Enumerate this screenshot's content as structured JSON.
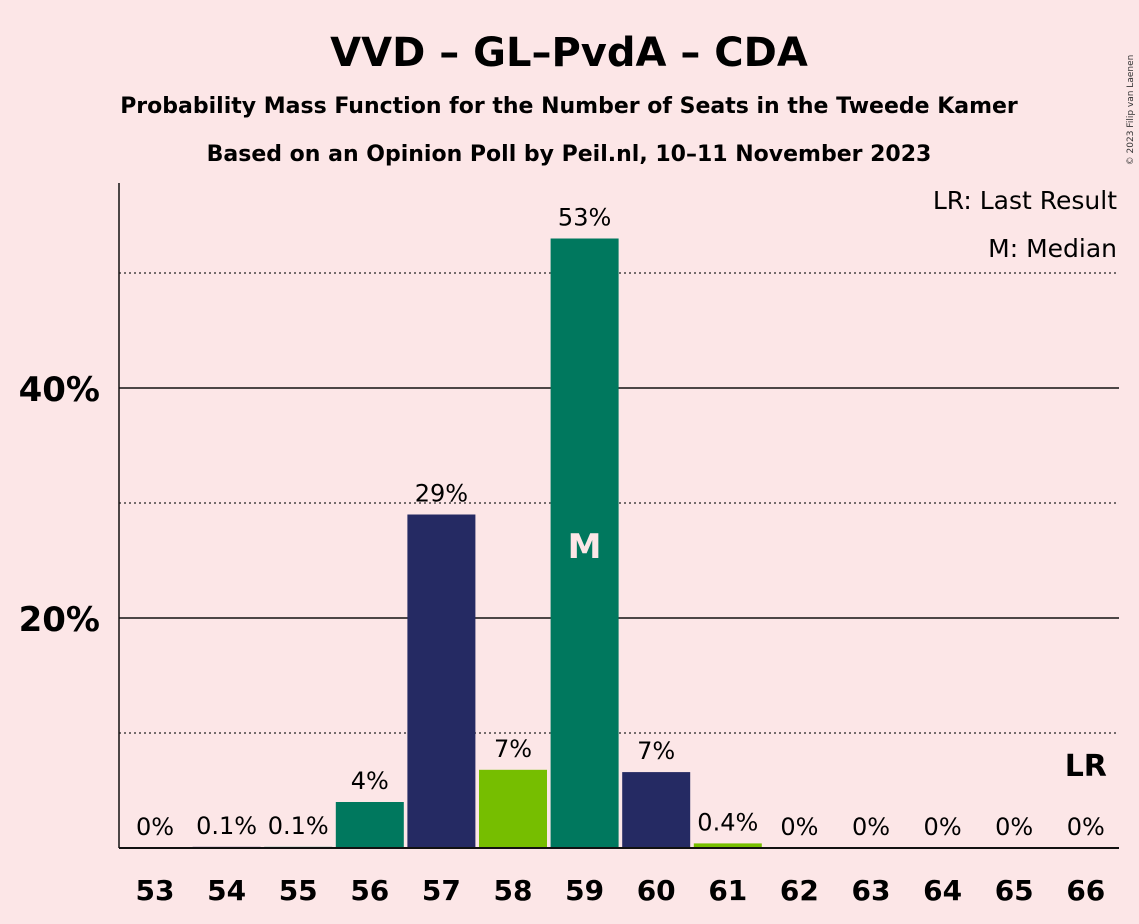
{
  "chart_data": {
    "type": "bar",
    "title": "VVD – GL–PvdA – CDA",
    "subtitle1": "Probability Mass Function for the Number of Seats in the Tweede Kamer",
    "subtitle2": "Based on an Opinion Poll by Peil.nl, 10–11 November 2023",
    "copyright": "© 2023 Filip van Laenen",
    "categories": [
      "53",
      "54",
      "55",
      "56",
      "57",
      "58",
      "59",
      "60",
      "61",
      "62",
      "63",
      "64",
      "65",
      "66"
    ],
    "values": [
      0,
      0.1,
      0.1,
      4,
      29,
      6.8,
      53,
      6.6,
      0.4,
      0,
      0,
      0,
      0,
      0
    ],
    "data_labels": [
      "0%",
      "0.1%",
      "0.1%",
      "4%",
      "29%",
      "7%",
      "53%",
      "7%",
      "0.4%",
      "0%",
      "0%",
      "0%",
      "0%",
      "0%"
    ],
    "bar_colors": [
      "#00785E",
      "#252A63",
      "#00785E",
      "#00785E",
      "#252A63",
      "#76BE00",
      "#00785E",
      "#252A63",
      "#76BE00",
      "#00785E",
      "#252A63",
      "#00785E",
      "#00785E",
      "#252A63"
    ],
    "ylim": [
      0,
      58
    ],
    "yticks": [
      {
        "value": 20,
        "label": "20%"
      },
      {
        "value": 40,
        "label": "40%"
      }
    ],
    "dotted_gridlines": [
      10,
      30,
      50
    ],
    "median_seat": "59",
    "median_mark": "M",
    "last_result_seat": "66",
    "last_result_mark": "LR",
    "legend": [
      "LR: Last Result",
      "M: Median"
    ],
    "legend_position": "top-right",
    "colors": {
      "background": "#FCE6E7",
      "vvd": "#252A63",
      "gl_pvda": "#00785E",
      "cda": "#76BE00"
    }
  }
}
